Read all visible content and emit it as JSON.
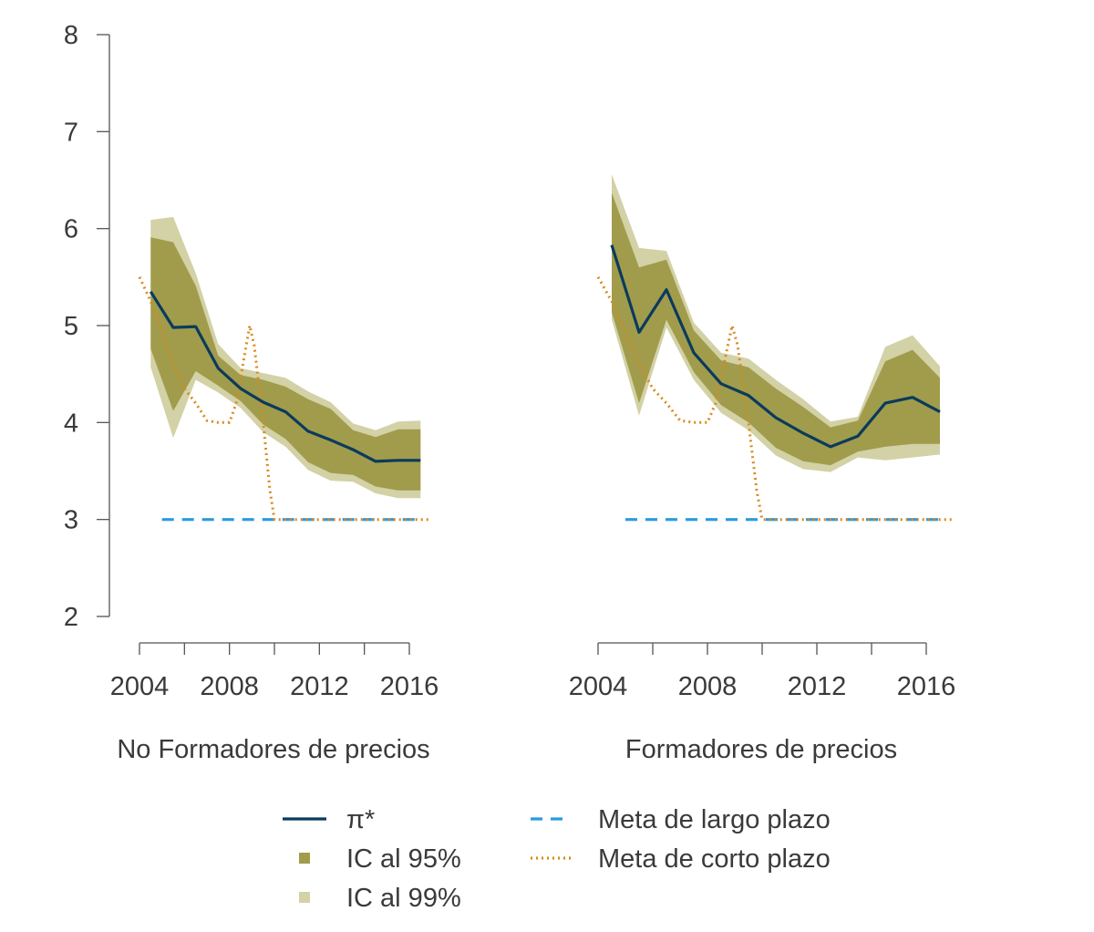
{
  "chart_data": {
    "type": "line",
    "ylim": [
      2,
      8
    ],
    "yticks": [
      2,
      3,
      4,
      5,
      6,
      7,
      8
    ],
    "xlim": [
      2004,
      2017
    ],
    "xtick_labels": [
      2004,
      2008,
      2012,
      2016
    ],
    "xminor_ticks": [
      2004,
      2006,
      2008,
      2010,
      2012,
      2014,
      2016
    ],
    "colors": {
      "pi_star": "#0b3a5c",
      "ci95": "#a09c4c",
      "ci99": "#d3d1a6",
      "long_term_goal": "#2a9be0",
      "short_term_goal": "#d98a1e"
    },
    "legend": {
      "placement": "bottom",
      "items": [
        {
          "key": "pi_star",
          "label": "π*",
          "style": "solid-line"
        },
        {
          "key": "ci95",
          "label": "IC al 95%",
          "style": "square"
        },
        {
          "key": "ci99",
          "label": "IC al 99%",
          "style": "square"
        },
        {
          "key": "long_term_goal",
          "label": "Meta de largo plazo",
          "style": "dashed-line"
        },
        {
          "key": "short_term_goal",
          "label": "Meta de corto plazo",
          "style": "dotted-line"
        }
      ]
    },
    "panels": [
      {
        "title": "No Formadores de precios",
        "x": [
          2004.5,
          2005.5,
          2006.5,
          2007.5,
          2008.5,
          2009.5,
          2010.5,
          2011.5,
          2012.5,
          2013.5,
          2014.5,
          2015.5,
          2016.5
        ],
        "pi_star": [
          5.35,
          4.98,
          4.99,
          4.56,
          4.35,
          4.21,
          4.11,
          3.91,
          3.82,
          3.72,
          3.6,
          3.61,
          3.61
        ],
        "ci95_upper": [
          5.91,
          5.86,
          5.41,
          4.69,
          4.49,
          4.44,
          4.37,
          4.24,
          4.14,
          3.92,
          3.85,
          3.93,
          3.93
        ],
        "ci95_lower": [
          4.76,
          4.12,
          4.53,
          4.38,
          4.22,
          3.98,
          3.83,
          3.59,
          3.48,
          3.46,
          3.34,
          3.3,
          3.3
        ],
        "ci99_upper": [
          6.09,
          6.12,
          5.54,
          4.81,
          4.56,
          4.51,
          4.46,
          4.32,
          4.21,
          3.99,
          3.92,
          4.01,
          4.02
        ],
        "ci99_lower": [
          4.57,
          3.84,
          4.44,
          4.31,
          4.15,
          3.9,
          3.75,
          3.51,
          3.4,
          3.39,
          3.27,
          3.22,
          3.22
        ],
        "long_term_goal": {
          "x": [
            2005,
            2016.5
          ],
          "y": [
            3,
            3
          ]
        },
        "short_term_goal": {
          "x": [
            2004,
            2004.5,
            2005,
            2005.5,
            2006,
            2006.5,
            2007,
            2007.5,
            2008,
            2008.3,
            2008.6,
            2008.9,
            2009.1,
            2009.5,
            2009.8,
            2010,
            2011,
            2012,
            2013,
            2014,
            2015,
            2016,
            2017
          ],
          "y": [
            5.5,
            5.25,
            4.95,
            4.6,
            4.35,
            4.2,
            4.02,
            4.0,
            4.0,
            4.2,
            4.6,
            5.0,
            4.8,
            4.0,
            3.3,
            3.0,
            3.0,
            3.0,
            3.0,
            3.0,
            3.0,
            3.0,
            3.0
          ]
        }
      },
      {
        "title": "Formadores de precios",
        "x": [
          2004.5,
          2005.5,
          2006.5,
          2007.5,
          2008.5,
          2009.5,
          2010.5,
          2011.5,
          2012.5,
          2013.5,
          2014.5,
          2015.5,
          2016.5
        ],
        "pi_star": [
          5.83,
          4.93,
          5.37,
          4.72,
          4.4,
          4.28,
          4.05,
          3.89,
          3.75,
          3.86,
          4.2,
          4.26,
          4.11
        ],
        "ci95_upper": [
          6.37,
          5.6,
          5.68,
          4.95,
          4.64,
          4.57,
          4.35,
          4.16,
          3.95,
          4.02,
          4.63,
          4.75,
          4.46
        ],
        "ci95_lower": [
          5.14,
          4.2,
          5.06,
          4.52,
          4.18,
          4.0,
          3.74,
          3.6,
          3.56,
          3.7,
          3.75,
          3.78,
          3.78
        ],
        "ci99_upper": [
          6.56,
          5.8,
          5.77,
          5.03,
          4.72,
          4.66,
          4.44,
          4.24,
          4.01,
          4.06,
          4.78,
          4.9,
          4.58
        ],
        "ci99_lower": [
          5.06,
          4.07,
          4.98,
          4.44,
          4.1,
          3.92,
          3.66,
          3.52,
          3.49,
          3.64,
          3.61,
          3.64,
          3.67
        ],
        "long_term_goal": {
          "x": [
            2005,
            2016.5
          ],
          "y": [
            3,
            3
          ]
        },
        "short_term_goal": {
          "x": [
            2004,
            2004.5,
            2005,
            2005.5,
            2006,
            2006.5,
            2007,
            2007.5,
            2008,
            2008.3,
            2008.6,
            2008.9,
            2009.1,
            2009.5,
            2009.8,
            2010,
            2011,
            2012,
            2013,
            2014,
            2015,
            2016,
            2017
          ],
          "y": [
            5.5,
            5.25,
            4.95,
            4.6,
            4.35,
            4.2,
            4.02,
            4.0,
            4.0,
            4.2,
            4.6,
            5.0,
            4.8,
            4.0,
            3.3,
            3.0,
            3.0,
            3.0,
            3.0,
            3.0,
            3.0,
            3.0,
            3.0
          ]
        }
      }
    ]
  }
}
